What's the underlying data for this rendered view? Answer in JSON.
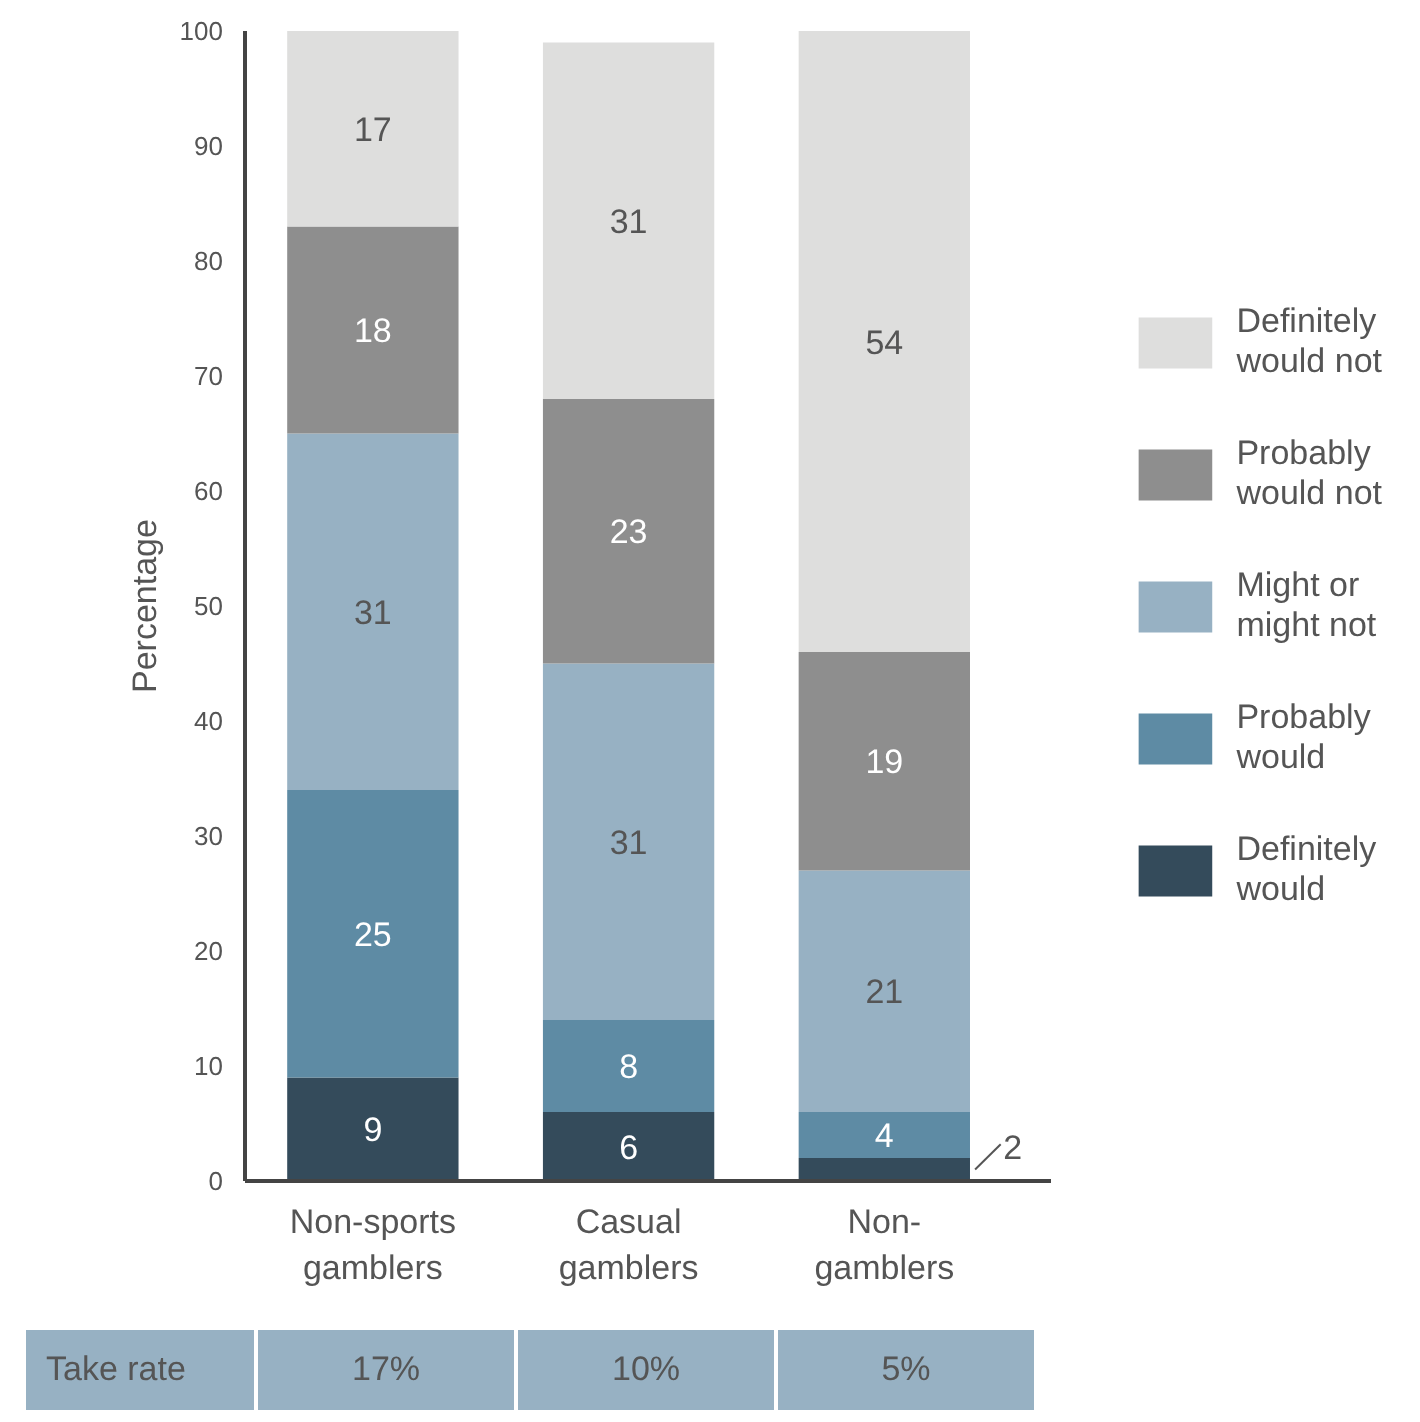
{
  "chart_data": {
    "type": "bar",
    "stacked": true,
    "ylabel": "Percentage",
    "categories": [
      "Non-sports\ngamblers",
      "Casual\ngamblers",
      "Non-\ngamblers"
    ],
    "series": [
      {
        "name": "Definitely\nwould",
        "color": "#344b5b",
        "values": [
          9,
          6,
          2
        ]
      },
      {
        "name": "Probably\nwould",
        "color": "#5e8ba4",
        "values": [
          25,
          8,
          4
        ]
      },
      {
        "name": "Might or\nmight not",
        "color": "#97b1c3",
        "values": [
          31,
          31,
          21
        ]
      },
      {
        "name": "Probably\nwould not",
        "color": "#8e8e8e",
        "values": [
          18,
          23,
          19
        ]
      },
      {
        "name": "Definitely\nwould not",
        "color": "#dededd",
        "values": [
          17,
          31,
          54
        ]
      }
    ],
    "ylim": [
      0,
      100
    ],
    "yticks": [
      0,
      10,
      20,
      30,
      40,
      50,
      60,
      70,
      80,
      90,
      100
    ],
    "data_labels": true,
    "grid": false,
    "legend": "right",
    "annotations": [
      "Take rate",
      "17%",
      "10%",
      "5%"
    ]
  }
}
